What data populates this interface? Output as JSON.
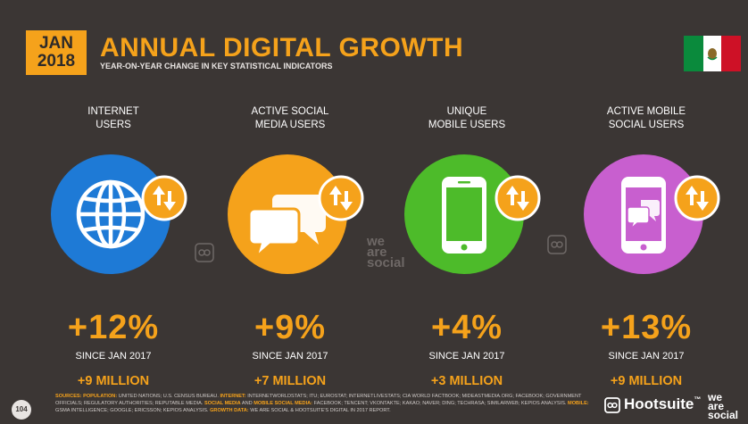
{
  "header": {
    "date_month": "JAN",
    "date_year": "2018",
    "title": "ANNUAL DIGITAL GROWTH",
    "subtitle": "YEAR-ON-YEAR CHANGE IN KEY STATISTICAL INDICATORS"
  },
  "colors": {
    "background": "#3b3634",
    "accent": "#f5a21b",
    "internet": "#1e7ad6",
    "social": "#f5a21b",
    "mobile": "#4dbb2a",
    "mobile_social": "#c85fcf"
  },
  "metrics": [
    {
      "label_line1": "INTERNET",
      "label_line2": "USERS",
      "icon": "globe-icon",
      "percent": "+12%",
      "since": "SINCE JAN 2017",
      "absolute": "+9 MILLION"
    },
    {
      "label_line1": "ACTIVE SOCIAL",
      "label_line2": "MEDIA USERS",
      "icon": "chat-bubbles-icon",
      "percent": "+9%",
      "since": "SINCE JAN 2017",
      "absolute": "+7 MILLION"
    },
    {
      "label_line1": "UNIQUE",
      "label_line2": "MOBILE USERS",
      "icon": "smartphone-icon",
      "percent": "+4%",
      "since": "SINCE JAN 2017",
      "absolute": "+3 MILLION"
    },
    {
      "label_line1": "ACTIVE MOBILE",
      "label_line2": "SOCIAL USERS",
      "icon": "mobile-chat-icon",
      "percent": "+13%",
      "since": "SINCE JAN 2017",
      "absolute": "+9 MILLION"
    }
  ],
  "watermark": {
    "line1": "we",
    "line2": "are",
    "line3": "social"
  },
  "footer": {
    "page_number": "104",
    "sources_label": "SOURCES:",
    "population_label": "POPULATION:",
    "population_text": "UNITED NATIONS; U.S. CENSUS BUREAU.",
    "internet_label": "INTERNET:",
    "internet_text": "INTERNETWORLDSTATS; ITU; EUROSTAT; INTERNETLIVESTATS; CIA WORLD FACTBOOK; MIDEASTMEDIA.ORG; FACEBOOK; GOVERNMENT OFFICIALS; REGULATORY AUTHORITIES; REPUTABLE MEDIA.",
    "social_label": "SOCIAL MEDIA",
    "and_text": "AND",
    "mobile_social_label": "MOBILE SOCIAL MEDIA:",
    "social_text": "FACEBOOK; TENCENT; VKONTAKTE; KAKAO; NAVER; DING; TECHRASA; SIMILARWEB; KEPIOS ANALYSIS.",
    "mobile_label": "MOBILE:",
    "mobile_text": "GSMA INTELLIGENCE; GOOGLE; ERICSSON; KEPIOS ANALYSIS.",
    "growth_label": "GROWTH DATA:",
    "growth_text": "WE ARE SOCIAL & HOOTSUITE'S DIGITAL IN 2017 REPORT.",
    "brand": "Hootsuite",
    "brand_tm": "™"
  }
}
